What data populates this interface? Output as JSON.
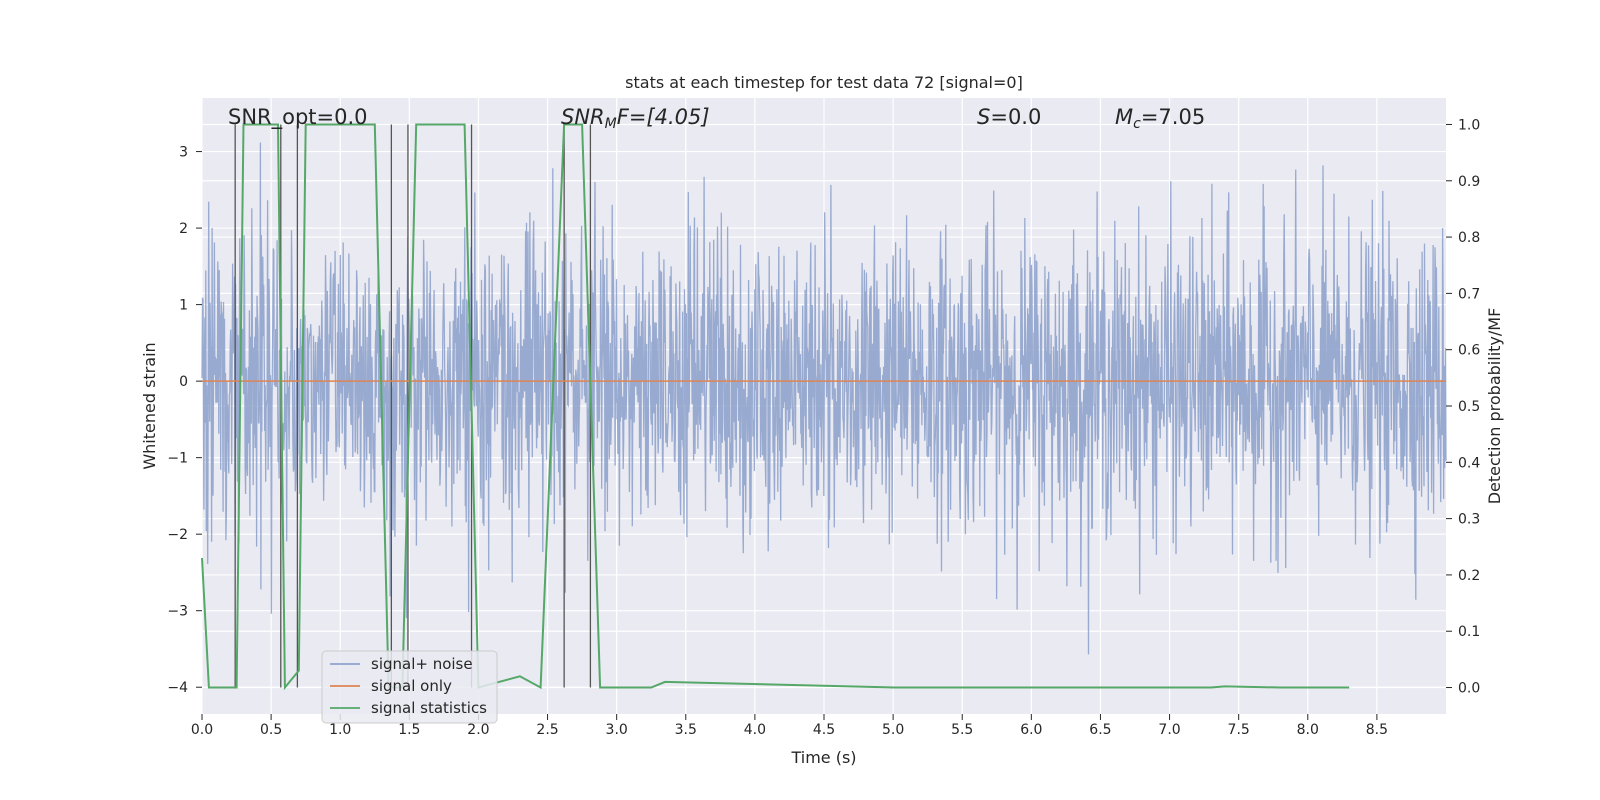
{
  "chart_data": {
    "type": "line",
    "title": "stats at each timestep for test data 72 [signal=0]",
    "xlabel": "Time (s)",
    "ylabel": "Whitened strain",
    "y2label": "Detection probability/MF",
    "xlim": [
      0.0,
      9.0
    ],
    "ylim": [
      -4.35,
      3.7
    ],
    "y2lim": [
      -0.047,
      1.047
    ],
    "xticks": [
      "0.0",
      "0.5",
      "1.0",
      "1.5",
      "2.0",
      "2.5",
      "3.0",
      "3.5",
      "4.0",
      "4.5",
      "5.0",
      "5.5",
      "6.0",
      "6.5",
      "7.0",
      "7.5",
      "8.0",
      "8.5"
    ],
    "yticks": [
      "3",
      "2",
      "1",
      "0",
      "−1",
      "−2",
      "−3",
      "−4"
    ],
    "y2ticks": [
      "1.0",
      "0.9",
      "0.8",
      "0.7",
      "0.6",
      "0.5",
      "0.4",
      "0.3",
      "0.2",
      "0.1",
      "0.0"
    ],
    "annotations": {
      "snr_opt": "SNR_opt=0.0",
      "snr_mf_main": "SNR",
      "snr_mf_sub": "M",
      "snr_mf_rest": "F=[4.05]",
      "s_main": "S",
      "s_rest": "=0.0",
      "mc_main": "M",
      "mc_sub": "c",
      "mc_rest": "=7.05"
    },
    "series": [
      {
        "name": "signal+ noise",
        "color": "#8fa3cc",
        "axis": "left",
        "description": "whitened strain noise, roughly within -2.5 to 2.5 with spikes to about 3.5 and -4"
      },
      {
        "name": "signal only",
        "color": "#dd8452",
        "axis": "left",
        "x": [
          0.0,
          9.0
        ],
        "y": [
          0.0,
          0.0
        ]
      },
      {
        "name": "signal statistics",
        "color": "#55a868",
        "axis": "right",
        "x": [
          0.0,
          0.05,
          0.25,
          0.3,
          0.55,
          0.6,
          0.7,
          0.75,
          1.0,
          1.25,
          1.35,
          1.4,
          1.45,
          1.55,
          1.7,
          1.9,
          2.0,
          2.3,
          2.45,
          2.62,
          2.68,
          2.75,
          2.88,
          3.0,
          3.25,
          3.35,
          5.0,
          7.3,
          7.4,
          7.8,
          8.3
        ],
        "y": [
          0.23,
          0.0,
          0.0,
          1.0,
          1.0,
          0.0,
          0.03,
          1.0,
          1.0,
          1.0,
          0.0,
          0.0,
          0.0,
          1.0,
          1.0,
          1.0,
          0.0,
          0.02,
          0.0,
          1.0,
          1.0,
          1.0,
          0.0,
          0.0,
          0.0,
          0.01,
          0.0,
          0.0,
          0.002,
          0.0,
          0.0
        ]
      }
    ],
    "marker_lines": {
      "color": "#555555",
      "x": [
        0.24,
        0.57,
        0.69,
        1.37,
        1.49,
        1.95,
        2.62,
        2.81
      ]
    },
    "legend": [
      "signal+ noise",
      "signal only",
      "signal statistics"
    ],
    "legend_position": "bottom-left",
    "grid": true
  },
  "colors": {
    "axes_background": "#eaeaf2",
    "grid": "#ffffff",
    "text": "#262626"
  }
}
